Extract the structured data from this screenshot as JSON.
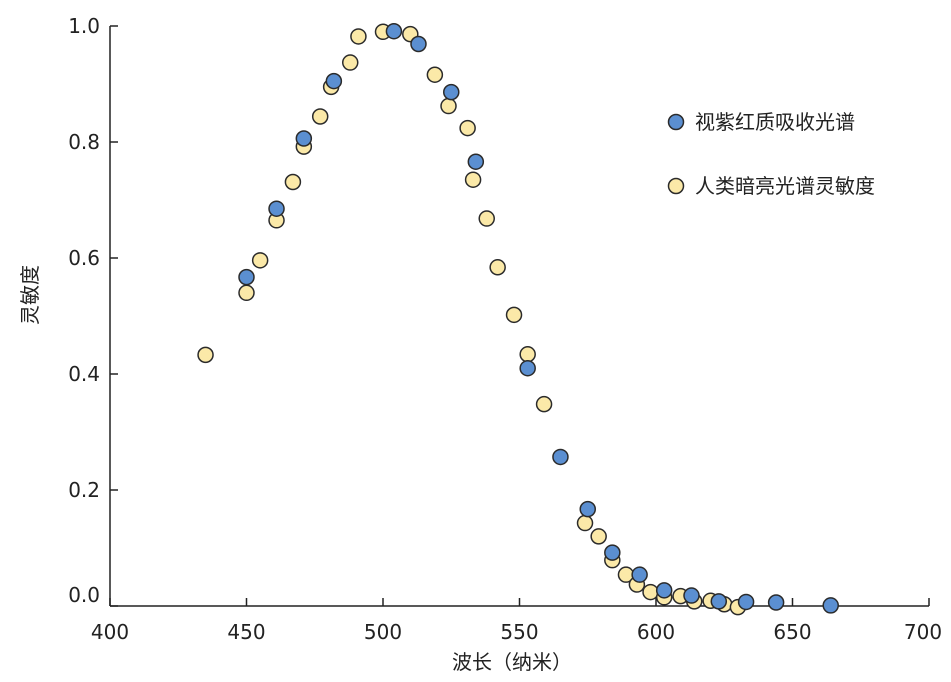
{
  "chart_data": {
    "type": "scatter",
    "title": "",
    "xlabel": "波长（纳米）",
    "ylabel": "灵敏度",
    "xlim": [
      400,
      700
    ],
    "ylim": [
      0,
      1.0
    ],
    "x_ticks": [
      400,
      450,
      500,
      550,
      600,
      650,
      700
    ],
    "x_tick_labels": [
      "400",
      "450",
      "500",
      "550",
      "600",
      "650",
      "700"
    ],
    "y_ticks": [
      0,
      0.2,
      0.4,
      0.6,
      0.8,
      1.0
    ],
    "y_tick_labels": [
      "0.0",
      "0.2",
      "0.4",
      "0.6",
      "0.8",
      "1.0"
    ],
    "grid": false,
    "legend_position": "right",
    "series": [
      {
        "name": "视紫红质吸收光谱",
        "color": "#5b8fd1",
        "x": [
          450,
          461,
          471,
          482,
          504,
          513,
          525,
          534,
          553,
          565,
          575,
          584,
          594,
          603,
          613,
          623,
          633,
          644,
          664
        ],
        "y": [
          0.567,
          0.685,
          0.806,
          0.905,
          0.991,
          0.969,
          0.886,
          0.766,
          0.41,
          0.257,
          0.167,
          0.092,
          0.054,
          0.027,
          0.018,
          0.008,
          0.007,
          0.006,
          0.001
        ]
      },
      {
        "name": "人类暗亮光谱灵敏度",
        "color": "#fbe9a8",
        "x": [
          435,
          450,
          455,
          461,
          467,
          471,
          477,
          481,
          488,
          491,
          500,
          510,
          519,
          524,
          531,
          533,
          538,
          542,
          548,
          553,
          559,
          574,
          579,
          584,
          589,
          593,
          598,
          603,
          609,
          614,
          620,
          625,
          630
        ],
        "y": [
          0.433,
          0.54,
          0.596,
          0.665,
          0.731,
          0.792,
          0.844,
          0.895,
          0.937,
          0.982,
          0.99,
          0.986,
          0.916,
          0.862,
          0.824,
          0.735,
          0.668,
          0.584,
          0.502,
          0.434,
          0.348,
          0.143,
          0.12,
          0.079,
          0.054,
          0.037,
          0.024,
          0.015,
          0.017,
          0.008,
          0.009,
          0.003,
          -0.002
        ]
      }
    ]
  }
}
